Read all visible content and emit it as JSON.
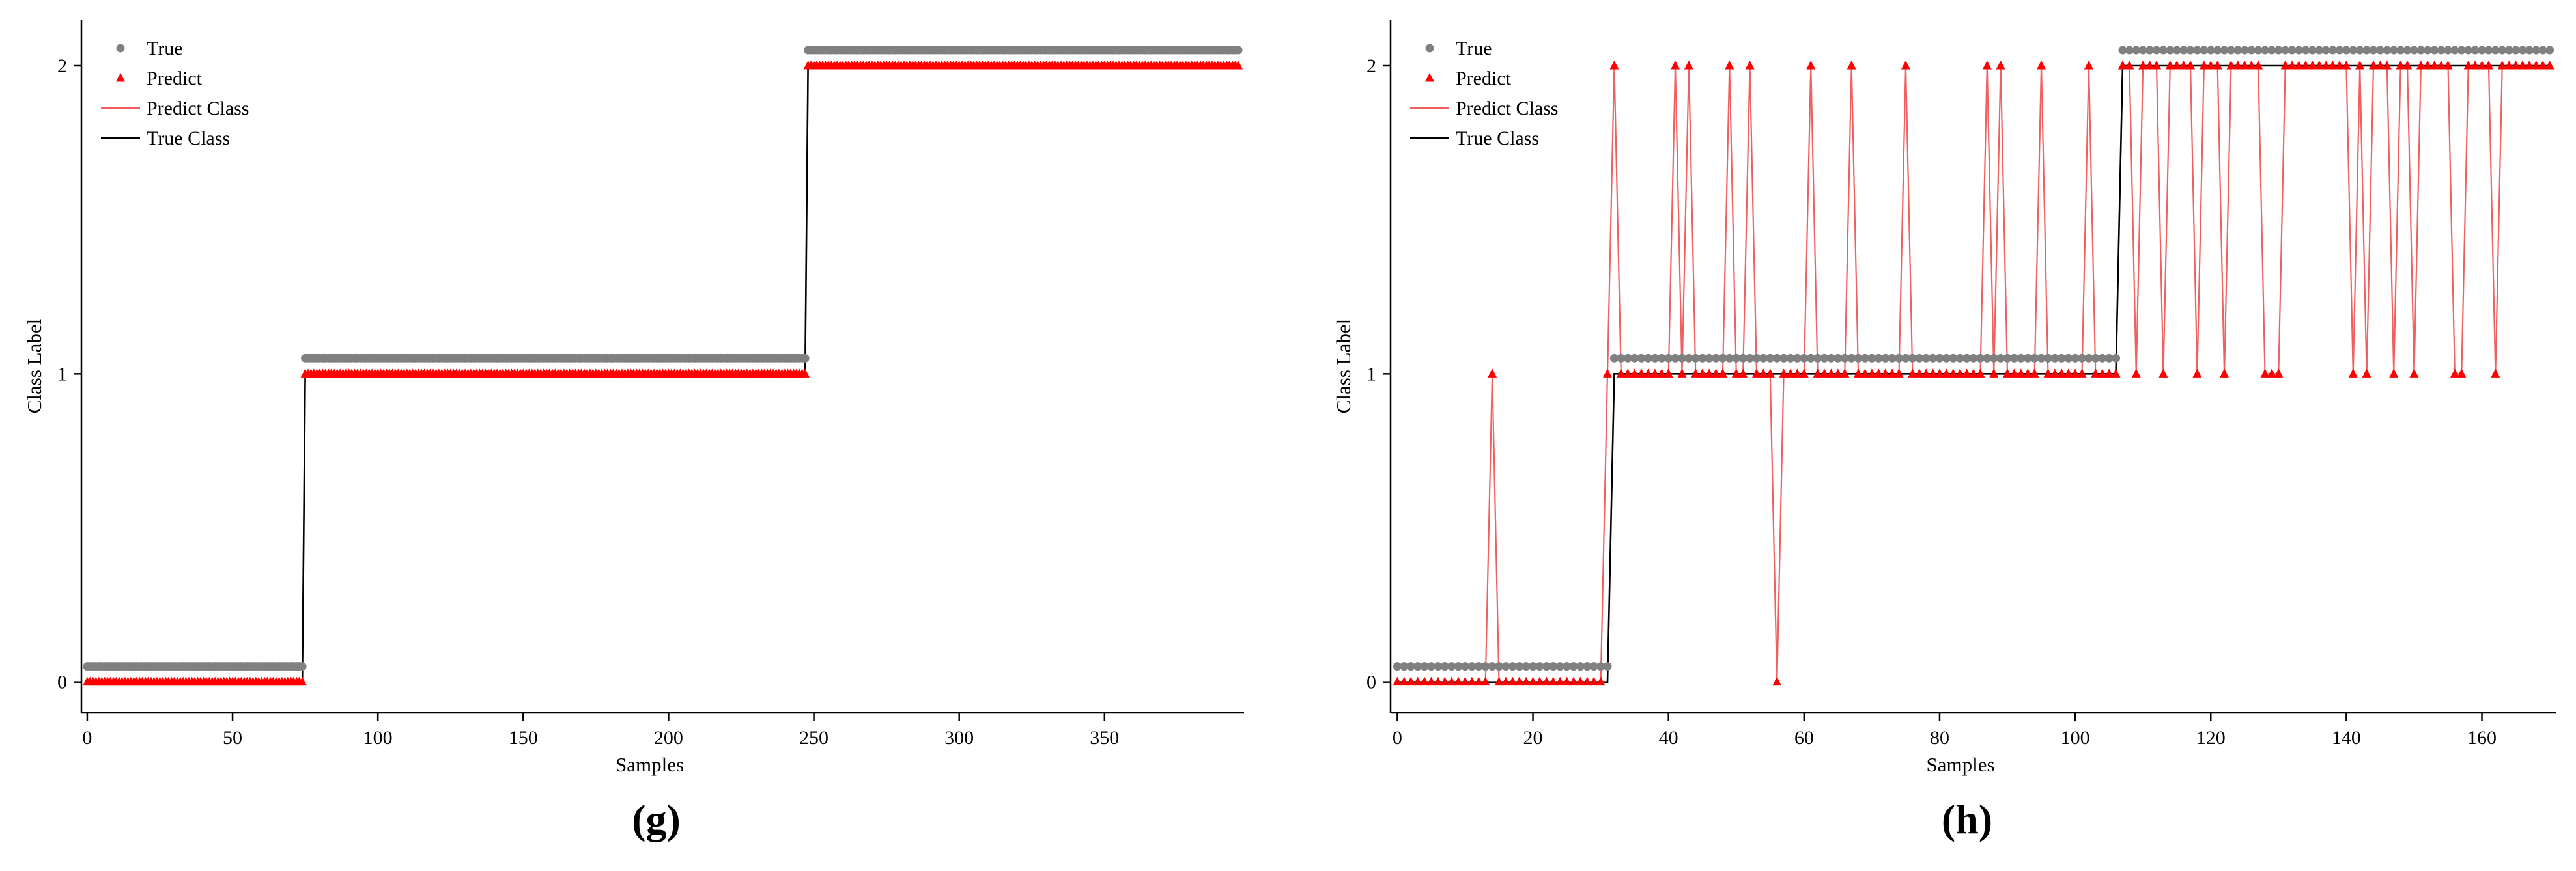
{
  "colors": {
    "true_marker": "#808080",
    "predict_marker": "#ff0000",
    "predict_line": "#f06060",
    "true_line": "#000000",
    "axis": "#000000"
  },
  "chart_data": [
    {
      "type": "line",
      "panel_label": "(g)",
      "xlabel": "Samples",
      "ylabel": "Class Label",
      "xlim": [
        -2,
        398
      ],
      "ylim": [
        -0.1,
        2.15
      ],
      "xticks": [
        0,
        50,
        100,
        150,
        200,
        250,
        300,
        350
      ],
      "yticks": [
        0,
        1,
        2
      ],
      "grid": false,
      "legend_position": "top-left",
      "legend": [
        "True",
        "Predict",
        "Predict Class",
        "True Class"
      ],
      "n_samples": 397,
      "true_runs": [
        [
          0,
          74,
          0
        ],
        [
          75,
          247,
          1
        ],
        [
          248,
          396,
          2
        ]
      ],
      "predict_runs": [
        [
          0,
          74,
          0
        ],
        [
          75,
          247,
          1
        ],
        [
          248,
          396,
          2
        ]
      ],
      "predict_overrides": []
    },
    {
      "type": "line",
      "panel_label": "(h)",
      "xlabel": "Samples",
      "ylabel": "Class Label",
      "xlim": [
        -1,
        171
      ],
      "ylim": [
        -0.1,
        2.15
      ],
      "xticks": [
        0,
        20,
        40,
        60,
        80,
        100,
        120,
        140,
        160
      ],
      "yticks": [
        0,
        1,
        2
      ],
      "grid": false,
      "legend_position": "top-left",
      "legend": [
        "True",
        "Predict",
        "Predict Class",
        "True Class"
      ],
      "n_samples": 171,
      "true_runs": [
        [
          0,
          31,
          0
        ],
        [
          32,
          106,
          1
        ],
        [
          107,
          170,
          2
        ]
      ],
      "predict_runs": [
        [
          0,
          31,
          0
        ],
        [
          32,
          106,
          1
        ],
        [
          107,
          170,
          2
        ]
      ],
      "predict_overrides": [
        [
          14,
          1
        ],
        [
          31,
          1
        ],
        [
          32,
          2
        ],
        [
          41,
          2
        ],
        [
          43,
          2
        ],
        [
          49,
          2
        ],
        [
          52,
          2
        ],
        [
          56,
          0
        ],
        [
          61,
          2
        ],
        [
          67,
          2
        ],
        [
          75,
          2
        ],
        [
          87,
          2
        ],
        [
          89,
          2
        ],
        [
          95,
          2
        ],
        [
          102,
          2
        ],
        [
          109,
          1
        ],
        [
          113,
          1
        ],
        [
          118,
          1
        ],
        [
          122,
          1
        ],
        [
          128,
          1
        ],
        [
          129,
          1
        ],
        [
          130,
          1
        ],
        [
          141,
          1
        ],
        [
          143,
          1
        ],
        [
          147,
          1
        ],
        [
          150,
          1
        ],
        [
          156,
          1
        ],
        [
          157,
          1
        ],
        [
          162,
          1
        ]
      ]
    }
  ]
}
